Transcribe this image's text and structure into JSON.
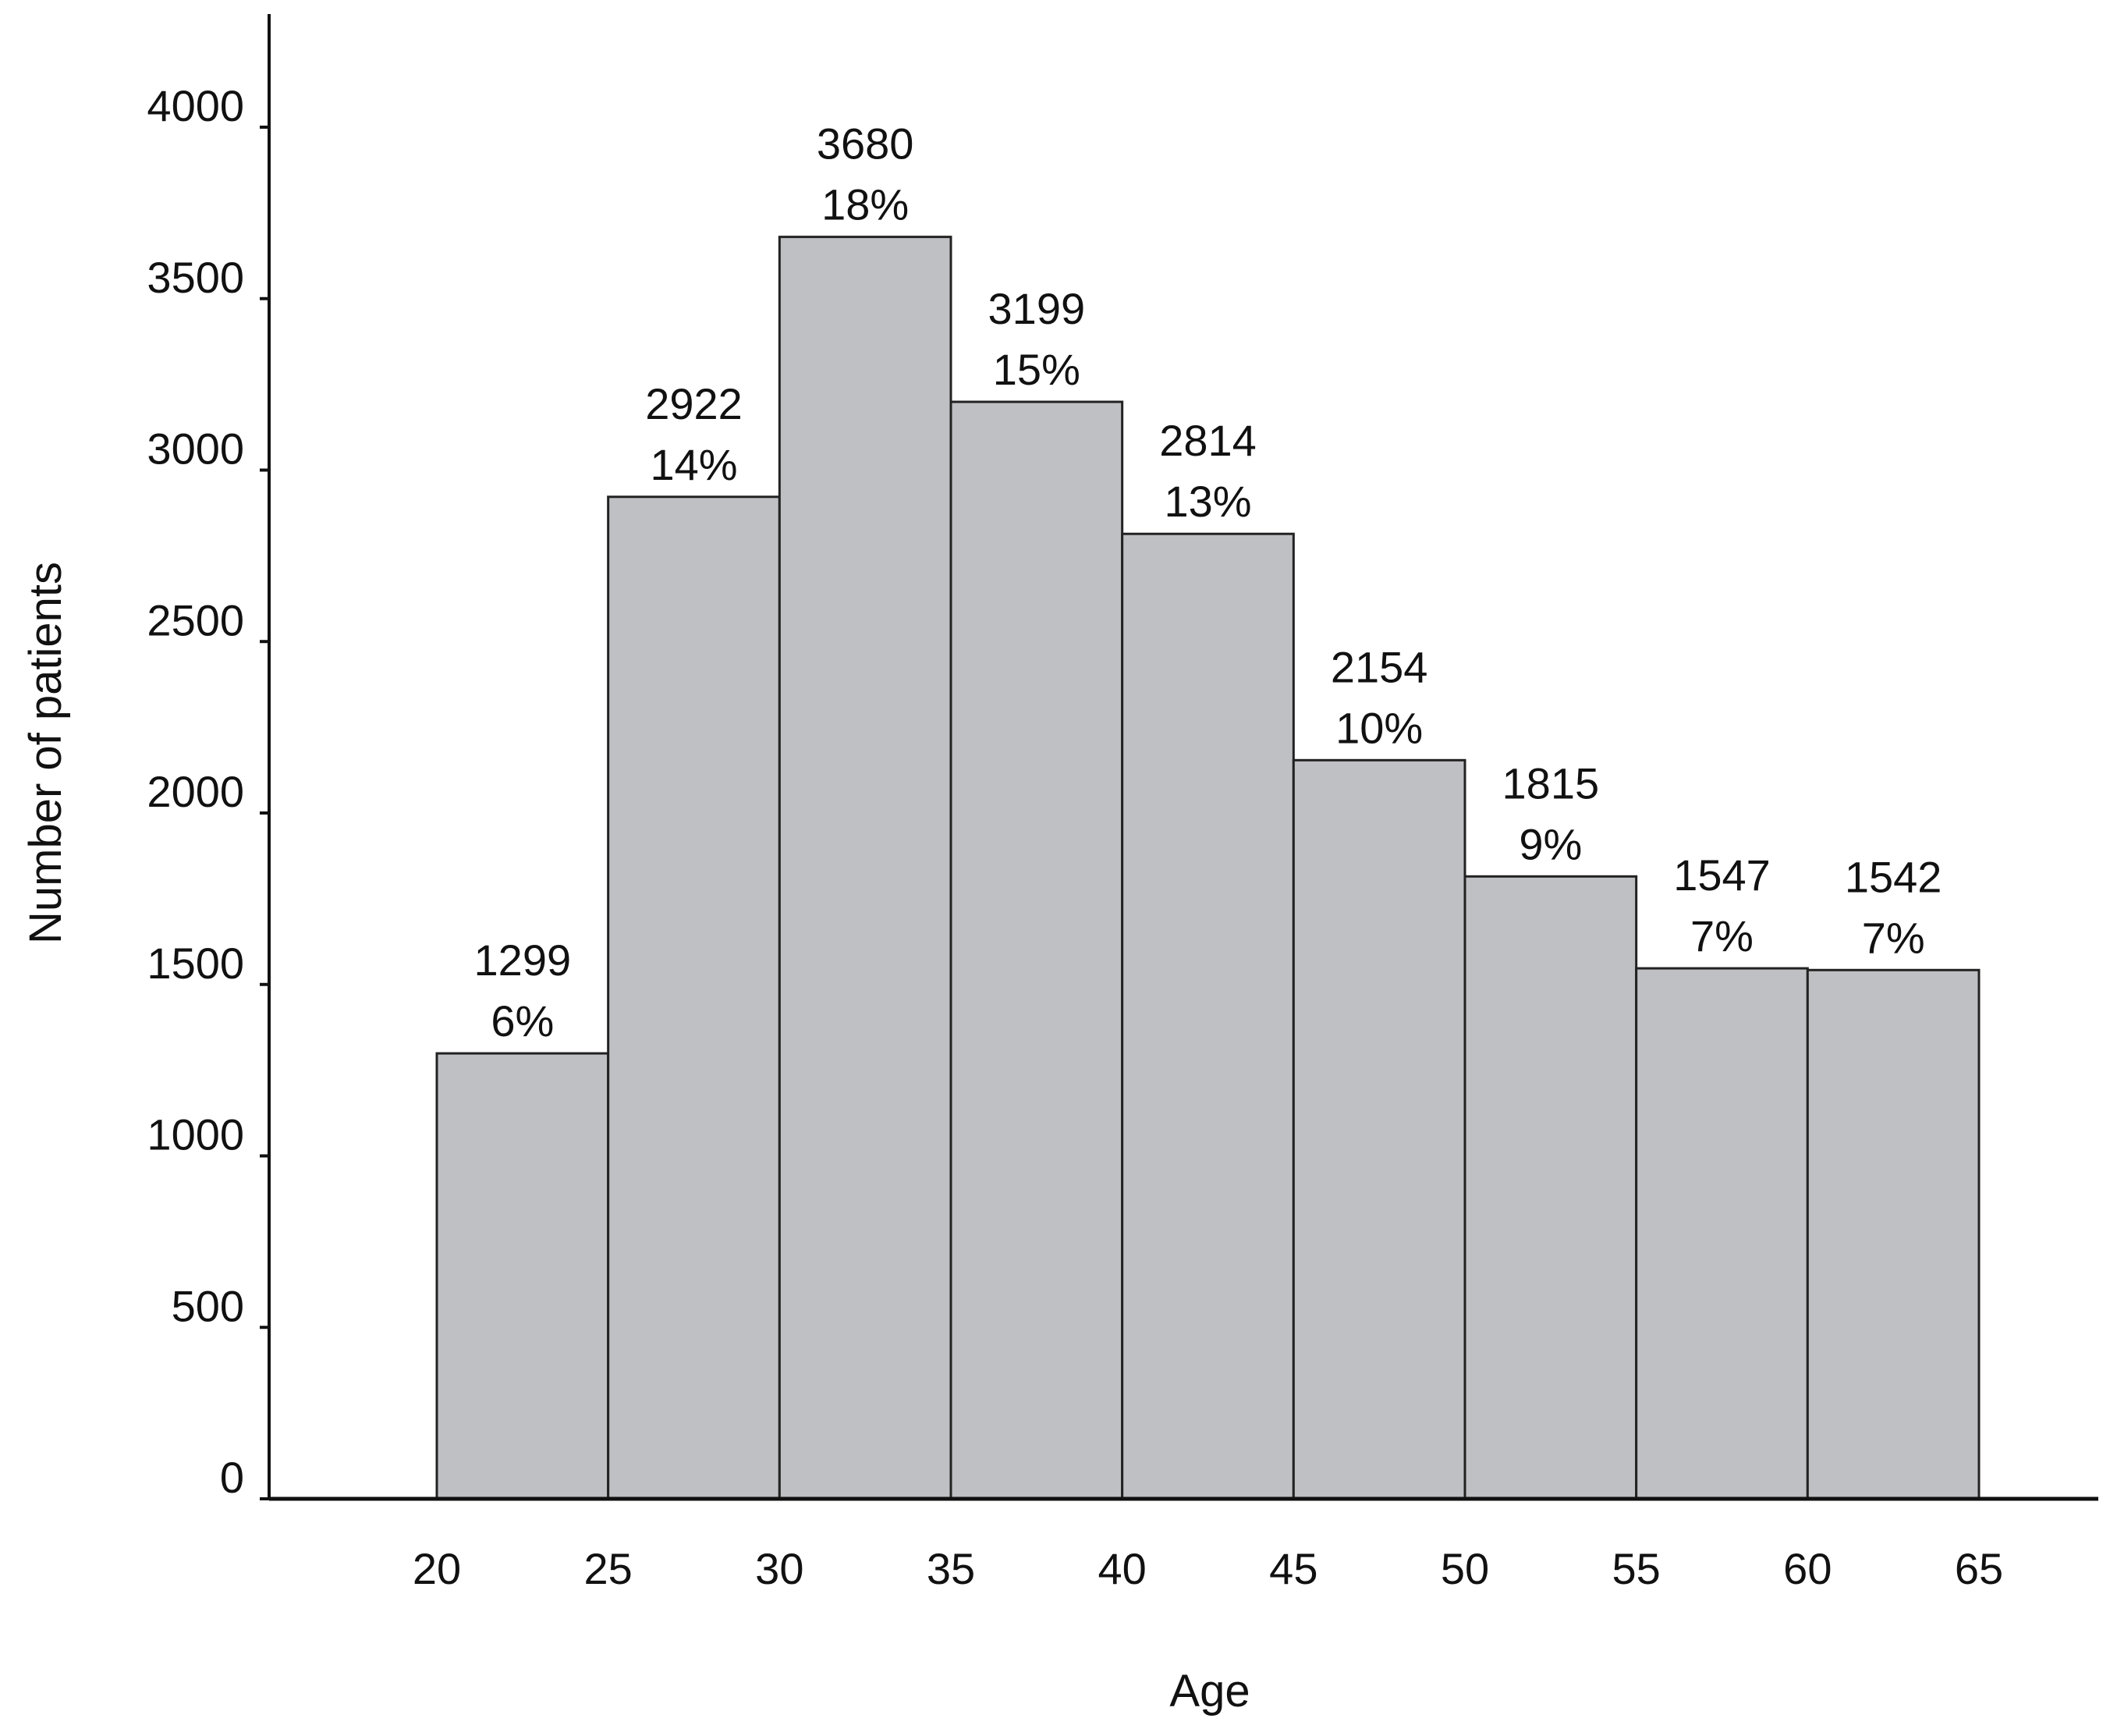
{
  "chart_data": {
    "type": "bar",
    "title": "",
    "xlabel": "Age",
    "ylabel": "Number of patients",
    "ylim": [
      0,
      4300
    ],
    "y_ticks": [
      0,
      500,
      1000,
      1500,
      2000,
      2500,
      3000,
      3500,
      4000
    ],
    "x_ticks": [
      20,
      25,
      30,
      35,
      40,
      45,
      50,
      55,
      60,
      65
    ],
    "xlim": [
      15,
      68
    ],
    "bins": [
      {
        "start": 20,
        "end": 25,
        "value": 1299,
        "label": "1299",
        "percent": "6%"
      },
      {
        "start": 25,
        "end": 30,
        "value": 2922,
        "label": "2922",
        "percent": "14%"
      },
      {
        "start": 30,
        "end": 35,
        "value": 3680,
        "label": "3680",
        "percent": "18%"
      },
      {
        "start": 35,
        "end": 40,
        "value": 3199,
        "label": "3199",
        "percent": "15%"
      },
      {
        "start": 40,
        "end": 45,
        "value": 2814,
        "label": "2814",
        "percent": "13%"
      },
      {
        "start": 45,
        "end": 50,
        "value": 2154,
        "label": "2154",
        "percent": "10%"
      },
      {
        "start": 50,
        "end": 55,
        "value": 1815,
        "label": "1815",
        "percent": "9%"
      },
      {
        "start": 55,
        "end": 60,
        "value": 1547,
        "label": "1547",
        "percent": "7%"
      },
      {
        "start": 60,
        "end": 65,
        "value": 1542,
        "label": "1542",
        "percent": "7%"
      }
    ],
    "bar_color": "#bfc0c4",
    "bar_edge_color": "#222222",
    "grid": false,
    "legend": "none"
  }
}
